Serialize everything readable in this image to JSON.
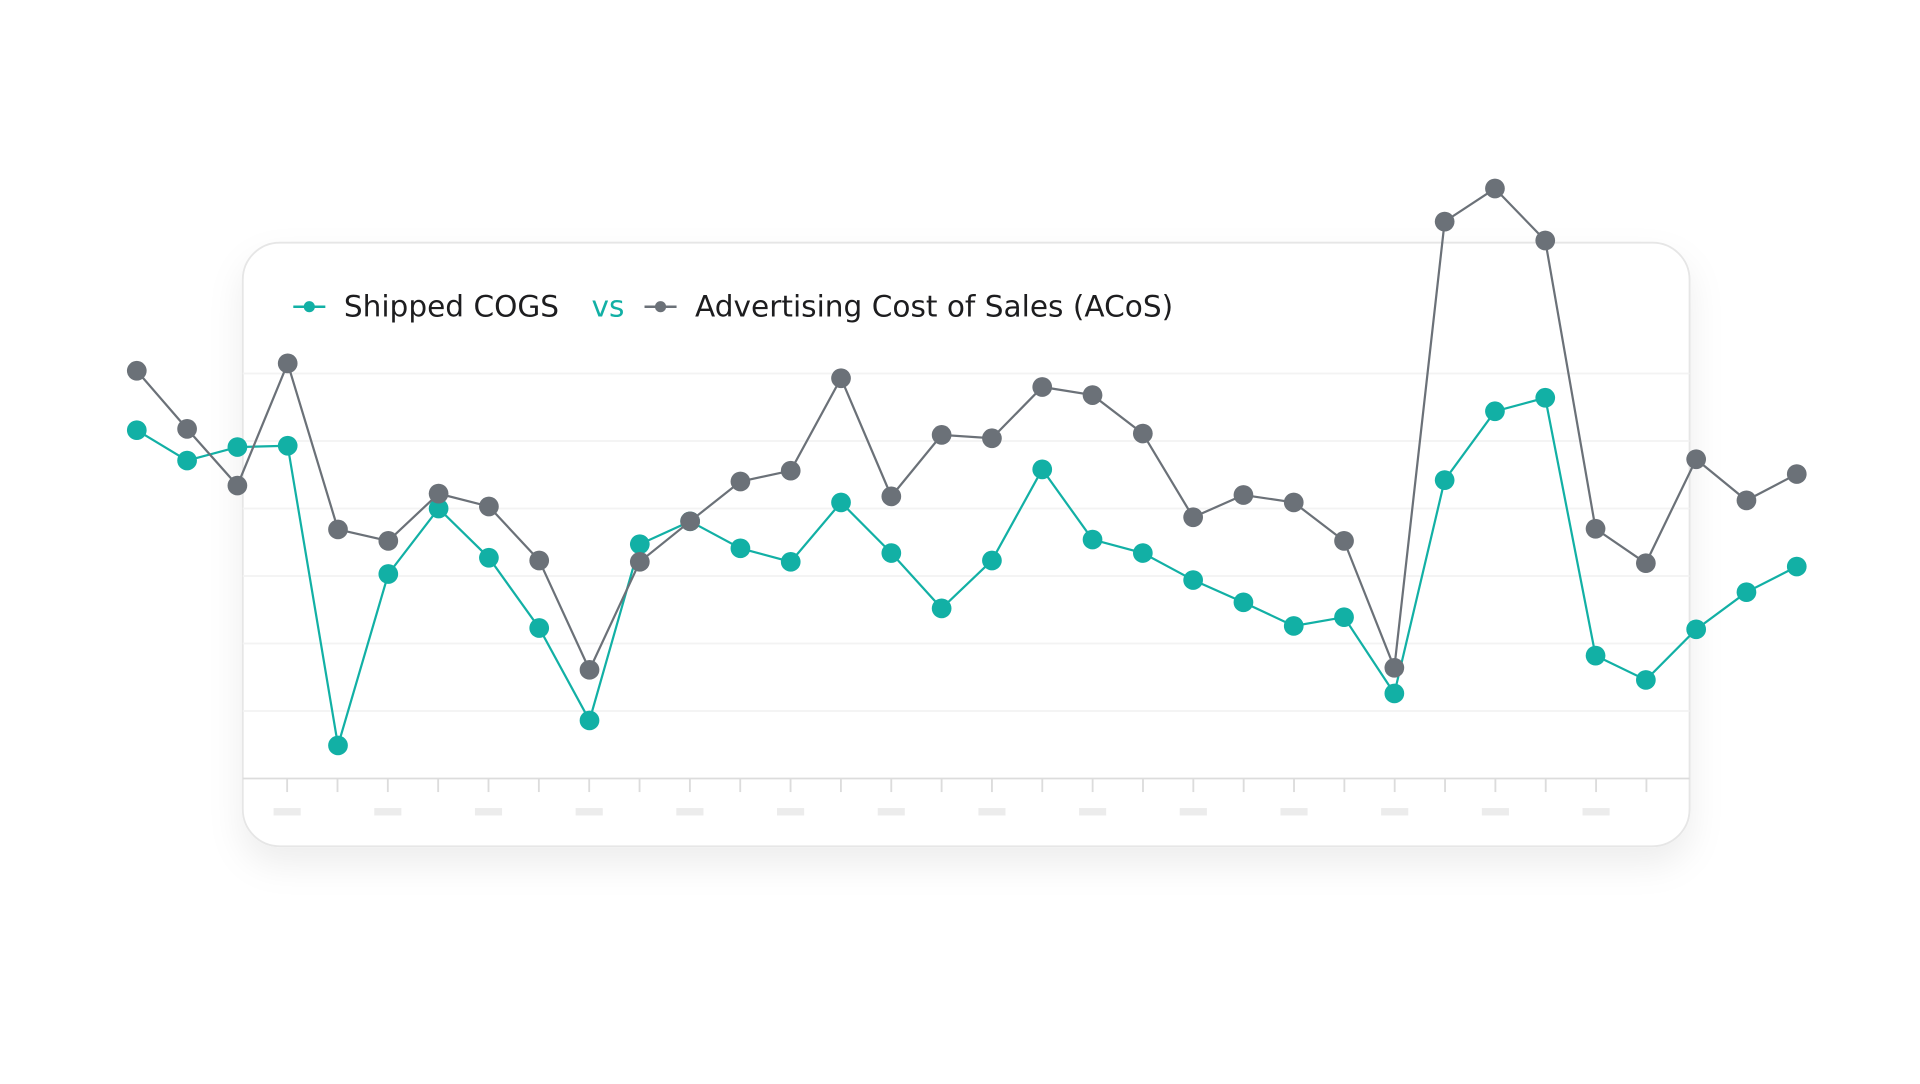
{
  "chart_data": {
    "type": "line",
    "legend_joiner": "vs",
    "ylim": [
      0,
      100
    ],
    "yticks": [
      0,
      10,
      20,
      30,
      40,
      50,
      60
    ],
    "grid": true,
    "series": [
      {
        "name": "Shipped COGS",
        "color": "#12b0a5",
        "values": [
          51.6,
          47.1,
          49.1,
          49.3,
          4.9,
          30.3,
          40.0,
          32.7,
          22.3,
          8.6,
          34.7,
          38.1,
          34.1,
          32.1,
          40.9,
          33.4,
          25.2,
          32.3,
          45.8,
          35.4,
          33.4,
          29.4,
          26.1,
          22.6,
          23.9,
          12.6,
          44.2,
          54.4,
          56.4,
          18.2,
          14.6,
          22.1,
          27.6,
          31.4
        ]
      },
      {
        "name": "Advertising Cost of Sales (ACoS)",
        "color": "#6b7178",
        "values": [
          60.4,
          51.8,
          43.4,
          61.5,
          36.9,
          35.2,
          42.2,
          40.3,
          32.3,
          16.1,
          32.1,
          38.1,
          44.0,
          45.6,
          59.3,
          41.8,
          50.9,
          50.4,
          58.0,
          56.8,
          51.1,
          38.7,
          42.0,
          40.9,
          35.2,
          16.4,
          82.5,
          87.4,
          79.7,
          37.0,
          31.9,
          47.3,
          41.2,
          45.1
        ]
      }
    ]
  }
}
